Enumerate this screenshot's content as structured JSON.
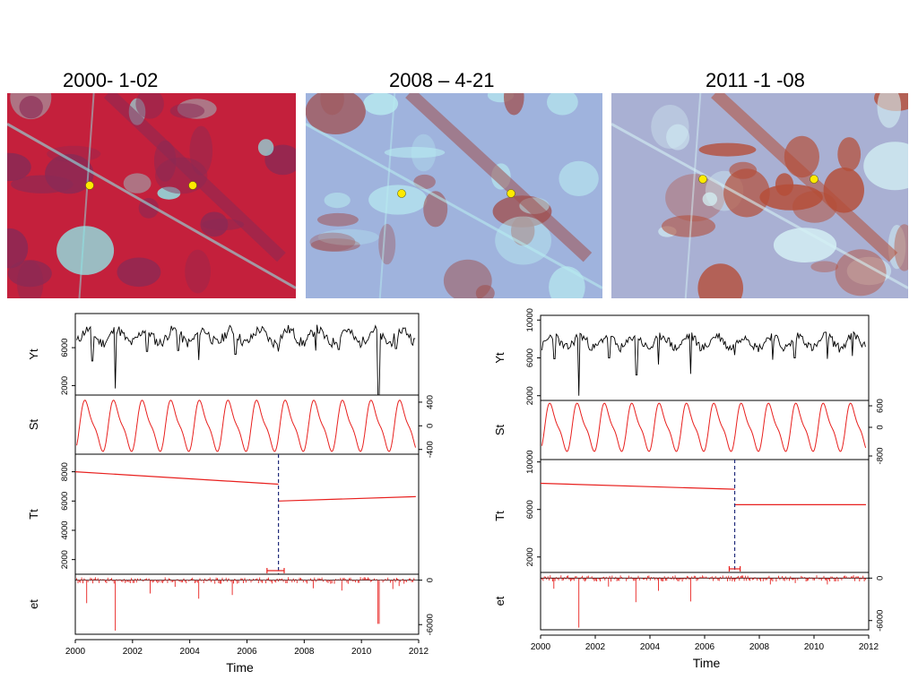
{
  "images": [
    {
      "title": "2000- 1-02",
      "palette": "red-vegetation",
      "colors": {
        "base": "#c4203c",
        "dark": "#8a2a55",
        "light": "#8fe8e8"
      }
    },
    {
      "title": "2008 – 4-21",
      "palette": "blue-bare",
      "colors": {
        "base": "#9fb3dd",
        "dark": "#a0504f",
        "light": "#b8ecf0"
      }
    },
    {
      "title": "2011 -1 -08",
      "palette": "mixed",
      "colors": {
        "base": "#a9b0d3",
        "dark": "#b54e38",
        "light": "#d5f2f5"
      }
    }
  ],
  "marker_color": "#ffea00",
  "colors": {
    "data_line": "#000000",
    "component_line": "#e8201e",
    "breakpoint": "#1f2a7a"
  },
  "chart_data": [
    {
      "type": "line",
      "panels": [
        "Yt",
        "St",
        "Tt",
        "et"
      ],
      "xlabel": "Time",
      "xlim": [
        2000,
        2012
      ],
      "xticks": [
        2000,
        2002,
        2004,
        2006,
        2008,
        2010,
        2012
      ],
      "breakpoint": {
        "x": 2007.1,
        "ci": [
          2006.7,
          2007.3
        ]
      },
      "Yt": {
        "yticks": [
          2000,
          6000
        ],
        "ylim": [
          1000,
          9600
        ],
        "base": 7200,
        "amp": 700,
        "noise": 550,
        "dips": [
          [
            2000.6,
            4600
          ],
          [
            2001.4,
            1700
          ],
          [
            2002.5,
            5600
          ],
          [
            2003.6,
            5700
          ],
          [
            2004.3,
            4700
          ],
          [
            2005.6,
            5300
          ],
          [
            2007.1,
            5600
          ],
          [
            2008.4,
            5700
          ],
          [
            2009.2,
            5800
          ],
          [
            2010.6,
            1000
          ],
          [
            2011.2,
            5900
          ]
        ]
      },
      "St": {
        "yticks": [
          400,
          0,
          -400
        ],
        "tick_labels": [
          "400",
          "0",
          "-400"
        ],
        "ylim": [
          -480,
          520
        ],
        "amp": 450
      },
      "Tt": {
        "yticks": [
          2000,
          4000,
          6000,
          8000
        ],
        "ylim": [
          1000,
          9200
        ],
        "segments": [
          [
            2000,
            8000,
            2007.1,
            7150
          ],
          [
            2007.1,
            6000,
            2011.9,
            6300
          ]
        ]
      },
      "et": {
        "yticks": [
          0,
          -6000
        ],
        "ylim": [
          -7300,
          800
        ],
        "spikes": [
          [
            2000.4,
            -3100
          ],
          [
            2001.4,
            -6800
          ],
          [
            2002.6,
            -1800
          ],
          [
            2003.5,
            -900
          ],
          [
            2004.3,
            -2500
          ],
          [
            2005.5,
            -2000
          ],
          [
            2008.3,
            -1100
          ],
          [
            2009.3,
            -1400
          ],
          [
            2010.6,
            -5900
          ],
          [
            2011.1,
            -1200
          ],
          [
            2011.3,
            -800
          ]
        ]
      }
    },
    {
      "type": "line",
      "panels": [
        "Yt",
        "St",
        "Tt",
        "et"
      ],
      "xlabel": "Time",
      "xlim": [
        2000,
        2012
      ],
      "xticks": [
        2000,
        2002,
        2004,
        2006,
        2008,
        2010,
        2012
      ],
      "breakpoint": {
        "x": 2007.1,
        "ci": [
          2006.9,
          2007.3
        ]
      },
      "Yt": {
        "yticks": [
          2000,
          6000,
          10000
        ],
        "ylim": [
          1500,
          10500
        ],
        "base": 7700,
        "amp": 650,
        "noise": 500,
        "dips": [
          [
            2000.5,
            5900
          ],
          [
            2001.4,
            2000
          ],
          [
            2002.5,
            6000
          ],
          [
            2003.5,
            4200
          ],
          [
            2004.3,
            5300
          ],
          [
            2005.5,
            4300
          ],
          [
            2007.1,
            6300
          ],
          [
            2008.5,
            5800
          ],
          [
            2009.3,
            6000
          ],
          [
            2010.5,
            5900
          ],
          [
            2011.4,
            6200
          ]
        ]
      },
      "St": {
        "yticks": [
          600,
          0,
          -800
        ],
        "tick_labels": [
          "600",
          "0",
          "-800"
        ],
        "ylim": [
          -900,
          750
        ],
        "amp": 700
      },
      "Tt": {
        "yticks": [
          2000,
          6000,
          10000
        ],
        "ylim": [
          700,
          10200
        ],
        "segments": [
          [
            2000,
            8200,
            2007.1,
            7700
          ],
          [
            2007.1,
            6400,
            2011.9,
            6400
          ]
        ]
      },
      "et": {
        "yticks": [
          0,
          -6000
        ],
        "ylim": [
          -7300,
          800
        ],
        "spikes": [
          [
            2000.5,
            -1500
          ],
          [
            2001.4,
            -7000
          ],
          [
            2002.5,
            -1200
          ],
          [
            2003.5,
            -3400
          ],
          [
            2004.3,
            -1800
          ],
          [
            2005.5,
            -3300
          ],
          [
            2007.1,
            -500
          ],
          [
            2008.4,
            -900
          ],
          [
            2009.3,
            -700
          ],
          [
            2010.5,
            -900
          ]
        ]
      }
    }
  ]
}
